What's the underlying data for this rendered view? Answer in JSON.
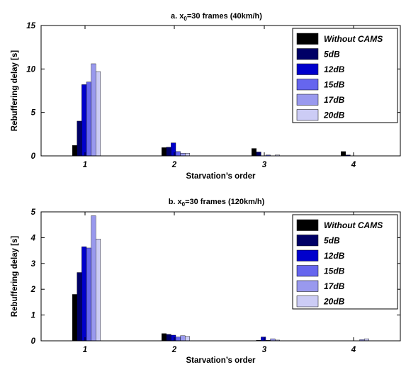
{
  "chart_data": [
    {
      "type": "bar",
      "title": "a. x",
      "title_sub": "0",
      "title_tail": "=30 frames (40km/h)",
      "xlabel": "Starvation’s order",
      "ylabel": "Rebuffering delay [s]",
      "categories": [
        "1",
        "2",
        "3",
        "4"
      ],
      "ylim": [
        0,
        15
      ],
      "yticks": [
        0,
        5,
        10,
        15
      ],
      "grid": false,
      "legend_position": "top-right",
      "series": [
        {
          "name": "Without CAMS",
          "color": "#000000",
          "values": [
            1.2,
            0.95,
            0.85,
            0.5
          ]
        },
        {
          "name": "5dB",
          "color": "#000066",
          "values": [
            4.0,
            1.0,
            0.45,
            0.1
          ]
        },
        {
          "name": "12dB",
          "color": "#0000cc",
          "values": [
            8.2,
            1.5,
            0.0,
            0.0
          ]
        },
        {
          "name": "15dB",
          "color": "#6666ee",
          "values": [
            8.5,
            0.5,
            0.1,
            0.0
          ]
        },
        {
          "name": "17dB",
          "color": "#9999ee",
          "values": [
            10.6,
            0.3,
            0.0,
            0.0
          ]
        },
        {
          "name": "20dB",
          "color": "#ccccf5",
          "values": [
            9.7,
            0.3,
            0.1,
            0.0
          ]
        }
      ]
    },
    {
      "type": "bar",
      "title": "b. x",
      "title_sub": "0",
      "title_tail": "=30 frames (120km/h)",
      "xlabel": "Starvation’s order",
      "ylabel": "Rebuffering delay [s]",
      "categories": [
        "1",
        "2",
        "3",
        "4"
      ],
      "ylim": [
        0,
        5
      ],
      "yticks": [
        0,
        1,
        2,
        3,
        4,
        5
      ],
      "grid": false,
      "legend_position": "top-right",
      "series": [
        {
          "name": "Without CAMS",
          "color": "#000000",
          "values": [
            1.8,
            0.28,
            0.0,
            0.0
          ]
        },
        {
          "name": "5dB",
          "color": "#000066",
          "values": [
            2.65,
            0.25,
            0.02,
            0.0
          ]
        },
        {
          "name": "12dB",
          "color": "#0000cc",
          "values": [
            3.65,
            0.22,
            0.15,
            0.0
          ]
        },
        {
          "name": "15dB",
          "color": "#6666ee",
          "values": [
            3.6,
            0.15,
            0.02,
            0.0
          ]
        },
        {
          "name": "17dB",
          "color": "#9999ee",
          "values": [
            4.85,
            0.2,
            0.08,
            0.05
          ]
        },
        {
          "name": "20dB",
          "color": "#ccccf5",
          "values": [
            3.95,
            0.17,
            0.03,
            0.08
          ]
        }
      ]
    }
  ]
}
